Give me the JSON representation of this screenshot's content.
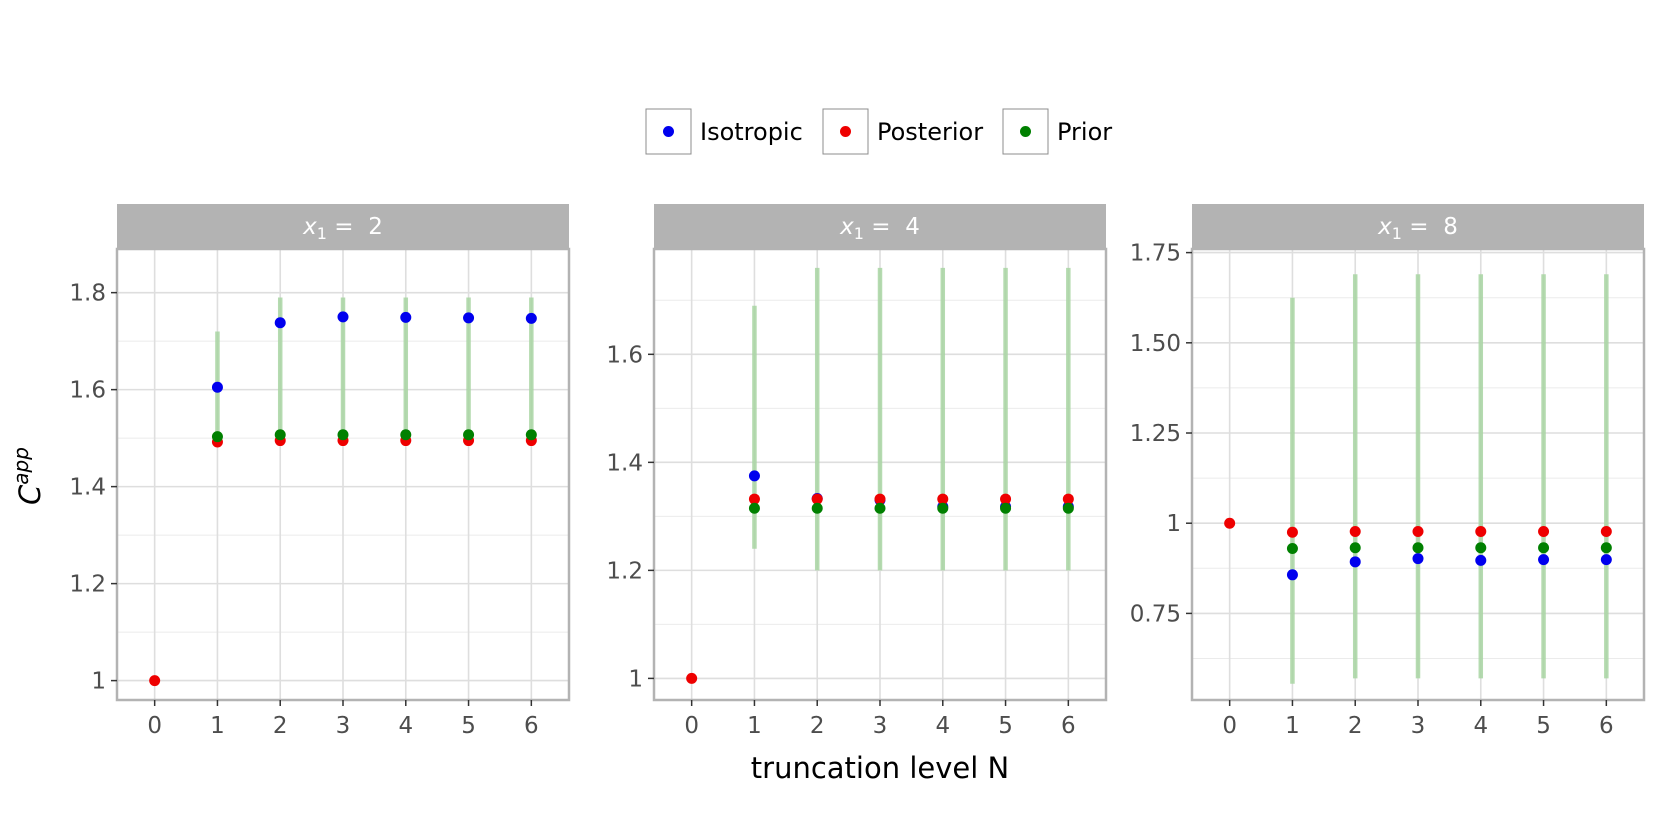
{
  "chart_data": {
    "type": "scatter",
    "xlabel": "truncation level N",
    "ylabel_base": "C",
    "ylabel_sup": "app",
    "legend_placement": "top",
    "legend": [
      {
        "name": "Isotropic",
        "color": "#0000ee"
      },
      {
        "name": "Posterior",
        "color": "#ee0000"
      },
      {
        "name": "Prior",
        "color": "#008000"
      }
    ],
    "error_bar_color": "#a8d5a2",
    "x_ticks": [
      "0",
      "1",
      "2",
      "3",
      "4",
      "5",
      "6"
    ],
    "panels": [
      {
        "label_var": "x",
        "label_sub": "1",
        "label_rest": " =  2",
        "ylim": [
          0.96,
          1.89
        ],
        "y_ticks": [
          1,
          1.2,
          1.4,
          1.6,
          1.8
        ],
        "y_tick_labels": [
          "1",
          "1.2",
          "1.4",
          "1.6",
          "1.8"
        ],
        "y_minor": [
          1.1,
          1.3,
          1.5,
          1.7
        ],
        "series": [
          {
            "name": "Isotropic",
            "x": [
              1,
              2,
              3,
              4,
              5,
              6
            ],
            "y": [
              1.605,
              1.738,
              1.75,
              1.749,
              1.748,
              1.747
            ]
          },
          {
            "name": "Posterior",
            "x": [
              0,
              1,
              2,
              3,
              4,
              5,
              6
            ],
            "y": [
              1.0,
              1.492,
              1.495,
              1.495,
              1.495,
              1.495,
              1.495
            ]
          },
          {
            "name": "Prior",
            "x": [
              1,
              2,
              3,
              4,
              5,
              6
            ],
            "y": [
              1.503,
              1.507,
              1.507,
              1.507,
              1.507,
              1.507
            ]
          }
        ],
        "error_bars": [
          {
            "x": 1,
            "low": 1.49,
            "high": 1.72
          },
          {
            "x": 2,
            "low": 1.49,
            "high": 1.79
          },
          {
            "x": 3,
            "low": 1.49,
            "high": 1.79
          },
          {
            "x": 4,
            "low": 1.49,
            "high": 1.79
          },
          {
            "x": 5,
            "low": 1.49,
            "high": 1.79
          },
          {
            "x": 6,
            "low": 1.49,
            "high": 1.79
          }
        ]
      },
      {
        "label_var": "x",
        "label_sub": "1",
        "label_rest": " =  4",
        "ylim": [
          0.96,
          1.795
        ],
        "y_ticks": [
          1,
          1.2,
          1.4,
          1.6
        ],
        "y_tick_labels": [
          "1",
          "1.2",
          "1.4",
          "1.6"
        ],
        "y_minor": [
          1.1,
          1.3,
          1.5,
          1.7
        ],
        "series": [
          {
            "name": "Isotropic",
            "x": [
              1,
              2,
              3,
              4,
              5,
              6
            ],
            "y": [
              1.375,
              1.333,
              1.33,
              1.318,
              1.318,
              1.318
            ]
          },
          {
            "name": "Posterior",
            "x": [
              0,
              1,
              2,
              3,
              4,
              5,
              6
            ],
            "y": [
              1.0,
              1.332,
              1.332,
              1.332,
              1.332,
              1.332,
              1.332
            ]
          },
          {
            "name": "Prior",
            "x": [
              1,
              2,
              3,
              4,
              5,
              6
            ],
            "y": [
              1.315,
              1.315,
              1.315,
              1.315,
              1.315,
              1.315
            ]
          }
        ],
        "error_bars": [
          {
            "x": 1,
            "low": 1.24,
            "high": 1.69
          },
          {
            "x": 2,
            "low": 1.2,
            "high": 1.76
          },
          {
            "x": 3,
            "low": 1.2,
            "high": 1.76
          },
          {
            "x": 4,
            "low": 1.2,
            "high": 1.76
          },
          {
            "x": 5,
            "low": 1.2,
            "high": 1.76
          },
          {
            "x": 6,
            "low": 1.2,
            "high": 1.76
          }
        ]
      },
      {
        "label_var": "x",
        "label_sub": "1",
        "label_rest": " =  8",
        "ylim": [
          0.51,
          1.76
        ],
        "y_ticks": [
          0.75,
          1,
          1.25,
          1.5,
          1.75
        ],
        "y_tick_labels": [
          "0.75",
          "1",
          "1.25",
          "1.50",
          "1.75"
        ],
        "y_minor": [
          0.625,
          0.875,
          1.125,
          1.375,
          1.625
        ],
        "series": [
          {
            "name": "Isotropic",
            "x": [
              1,
              2,
              3,
              4,
              5,
              6
            ],
            "y": [
              0.857,
              0.893,
              0.902,
              0.897,
              0.899,
              0.899
            ]
          },
          {
            "name": "Posterior",
            "x": [
              0,
              1,
              2,
              3,
              4,
              5,
              6
            ],
            "y": [
              1.0,
              0.975,
              0.977,
              0.977,
              0.977,
              0.977,
              0.977
            ]
          },
          {
            "name": "Prior",
            "x": [
              1,
              2,
              3,
              4,
              5,
              6
            ],
            "y": [
              0.93,
              0.932,
              0.932,
              0.932,
              0.932,
              0.932
            ]
          }
        ],
        "error_bars": [
          {
            "x": 1,
            "low": 0.555,
            "high": 1.625
          },
          {
            "x": 2,
            "low": 0.57,
            "high": 1.69
          },
          {
            "x": 3,
            "low": 0.57,
            "high": 1.69
          },
          {
            "x": 4,
            "low": 0.57,
            "high": 1.69
          },
          {
            "x": 5,
            "low": 0.57,
            "high": 1.69
          },
          {
            "x": 6,
            "low": 0.57,
            "high": 1.69
          }
        ]
      }
    ]
  }
}
